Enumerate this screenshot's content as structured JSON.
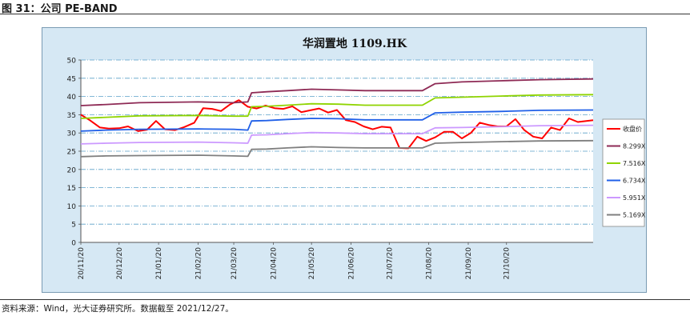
{
  "figure": {
    "caption": "图 31：公司 PE-BAND",
    "source": "资料来源：Wind，光大证券研究所。数据截至 2021/12/27。"
  },
  "chart_data": {
    "type": "line",
    "title": "华润置地 1109.HK",
    "ylim": [
      0,
      50
    ],
    "yticks": [
      0,
      5,
      10,
      15,
      20,
      25,
      30,
      35,
      40,
      45,
      50
    ],
    "xticks": [
      "20/11/20",
      "20/12/20",
      "21/01/20",
      "21/02/20",
      "21/03/20",
      "21/04/20",
      "21/05/20",
      "21/06/20",
      "21/07/20",
      "21/08/20",
      "21/09/20",
      "21/10/20"
    ],
    "x_range": [
      "2020-11-20",
      "2021-12-27"
    ],
    "grid": "horizontal dash-dot",
    "legend_position": "right",
    "series": [
      {
        "name": "收盘价",
        "color": "#ff0000",
        "points": [
          [
            "2020-11-20",
            35.0
          ],
          [
            "2020-11-27",
            33.5
          ],
          [
            "2020-12-05",
            31.5
          ],
          [
            "2020-12-12",
            31.2
          ],
          [
            "2020-12-20",
            31.3
          ],
          [
            "2020-12-27",
            31.8
          ],
          [
            "2021-01-04",
            30.5
          ],
          [
            "2021-01-11",
            30.9
          ],
          [
            "2021-01-18",
            33.3
          ],
          [
            "2021-01-25",
            31.0
          ],
          [
            "2021-02-02",
            30.8
          ],
          [
            "2021-02-09",
            31.6
          ],
          [
            "2021-02-17",
            32.8
          ],
          [
            "2021-02-24",
            36.8
          ],
          [
            "2021-03-03",
            36.6
          ],
          [
            "2021-03-10",
            36.0
          ],
          [
            "2021-03-17",
            37.8
          ],
          [
            "2021-03-24",
            39.0
          ],
          [
            "2021-03-31",
            37.2
          ],
          [
            "2021-04-07",
            36.7
          ],
          [
            "2021-04-14",
            37.5
          ],
          [
            "2021-04-21",
            36.8
          ],
          [
            "2021-04-28",
            36.6
          ],
          [
            "2021-05-05",
            37.3
          ],
          [
            "2021-05-12",
            35.7
          ],
          [
            "2021-05-19",
            36.2
          ],
          [
            "2021-05-26",
            36.7
          ],
          [
            "2021-06-02",
            35.6
          ],
          [
            "2021-06-09",
            36.3
          ],
          [
            "2021-06-16",
            33.5
          ],
          [
            "2021-06-23",
            33.0
          ],
          [
            "2021-06-30",
            31.8
          ],
          [
            "2021-07-07",
            31.0
          ],
          [
            "2021-07-14",
            31.7
          ],
          [
            "2021-07-21",
            31.5
          ],
          [
            "2021-07-28",
            25.9
          ],
          [
            "2021-08-04",
            25.8
          ],
          [
            "2021-08-11",
            29.0
          ],
          [
            "2021-08-18",
            27.8
          ],
          [
            "2021-08-25",
            28.8
          ],
          [
            "2021-09-01",
            30.3
          ],
          [
            "2021-09-08",
            30.3
          ],
          [
            "2021-09-15",
            28.5
          ],
          [
            "2021-09-22",
            30.0
          ],
          [
            "2021-09-29",
            32.8
          ],
          [
            "2021-10-06",
            32.2
          ],
          [
            "2021-10-13",
            31.8
          ],
          [
            "2021-10-20",
            31.8
          ],
          [
            "2021-10-27",
            33.8
          ],
          [
            "2021-11-03",
            30.8
          ],
          [
            "2021-11-10",
            29.0
          ],
          [
            "2021-11-17",
            28.5
          ],
          [
            "2021-11-24",
            31.5
          ],
          [
            "2021-12-01",
            30.8
          ],
          [
            "2021-12-08",
            34.0
          ],
          [
            "2021-12-15",
            33.0
          ],
          [
            "2021-12-27",
            33.5
          ]
        ]
      },
      {
        "name": "8.299X",
        "color": "#8e2a55",
        "points": [
          [
            "2020-11-20",
            37.5
          ],
          [
            "2020-12-10",
            37.8
          ],
          [
            "2021-01-05",
            38.3
          ],
          [
            "2021-02-20",
            38.5
          ],
          [
            "2021-03-20",
            38.3
          ],
          [
            "2021-03-31",
            38.5
          ],
          [
            "2021-04-03",
            41.0
          ],
          [
            "2021-04-15",
            41.3
          ],
          [
            "2021-05-01",
            41.6
          ],
          [
            "2021-05-20",
            42.0
          ],
          [
            "2021-06-10",
            41.8
          ],
          [
            "2021-07-01",
            41.6
          ],
          [
            "2021-08-15",
            41.6
          ],
          [
            "2021-08-25",
            43.5
          ],
          [
            "2021-09-15",
            44.0
          ],
          [
            "2021-10-15",
            44.3
          ],
          [
            "2021-11-15",
            44.6
          ],
          [
            "2021-12-27",
            44.8
          ]
        ]
      },
      {
        "name": "7.516X",
        "color": "#8fd400",
        "points": [
          [
            "2020-11-20",
            34.0
          ],
          [
            "2020-12-10",
            34.3
          ],
          [
            "2021-01-05",
            34.7
          ],
          [
            "2021-02-20",
            34.8
          ],
          [
            "2021-03-20",
            34.6
          ],
          [
            "2021-03-31",
            34.6
          ],
          [
            "2021-04-03",
            37.2
          ],
          [
            "2021-04-15",
            37.3
          ],
          [
            "2021-05-01",
            37.6
          ],
          [
            "2021-05-20",
            38.0
          ],
          [
            "2021-06-10",
            37.9
          ],
          [
            "2021-07-01",
            37.6
          ],
          [
            "2021-08-15",
            37.6
          ],
          [
            "2021-08-25",
            39.6
          ],
          [
            "2021-09-15",
            39.8
          ],
          [
            "2021-10-15",
            40.1
          ],
          [
            "2021-11-15",
            40.4
          ],
          [
            "2021-12-27",
            40.5
          ]
        ]
      },
      {
        "name": "6.734X",
        "color": "#2060e8",
        "points": [
          [
            "2020-11-20",
            30.5
          ],
          [
            "2020-12-10",
            30.8
          ],
          [
            "2021-01-05",
            31.0
          ],
          [
            "2021-02-20",
            31.1
          ],
          [
            "2021-03-20",
            31.0
          ],
          [
            "2021-03-31",
            30.8
          ],
          [
            "2021-04-03",
            33.3
          ],
          [
            "2021-04-15",
            33.4
          ],
          [
            "2021-05-01",
            33.7
          ],
          [
            "2021-05-20",
            34.0
          ],
          [
            "2021-06-10",
            33.9
          ],
          [
            "2021-07-01",
            33.6
          ],
          [
            "2021-08-15",
            33.6
          ],
          [
            "2021-08-25",
            35.5
          ],
          [
            "2021-09-15",
            35.7
          ],
          [
            "2021-10-15",
            35.9
          ],
          [
            "2021-11-15",
            36.2
          ],
          [
            "2021-12-27",
            36.3
          ]
        ]
      },
      {
        "name": "5.951X",
        "color": "#cc99ff",
        "points": [
          [
            "2020-11-20",
            27.0
          ],
          [
            "2020-12-10",
            27.2
          ],
          [
            "2021-01-05",
            27.4
          ],
          [
            "2021-02-20",
            27.5
          ],
          [
            "2021-03-20",
            27.3
          ],
          [
            "2021-03-31",
            27.2
          ],
          [
            "2021-04-03",
            29.4
          ],
          [
            "2021-04-15",
            29.5
          ],
          [
            "2021-05-01",
            29.8
          ],
          [
            "2021-05-20",
            30.1
          ],
          [
            "2021-06-10",
            30.0
          ],
          [
            "2021-07-01",
            29.8
          ],
          [
            "2021-08-15",
            29.8
          ],
          [
            "2021-08-25",
            31.4
          ],
          [
            "2021-09-15",
            31.5
          ],
          [
            "2021-10-15",
            31.7
          ],
          [
            "2021-11-15",
            32.0
          ],
          [
            "2021-12-27",
            32.1
          ]
        ]
      },
      {
        "name": "5.169X",
        "color": "#7f7f7f",
        "points": [
          [
            "2020-11-20",
            23.5
          ],
          [
            "2020-12-10",
            23.7
          ],
          [
            "2021-01-05",
            23.8
          ],
          [
            "2021-02-20",
            23.9
          ],
          [
            "2021-03-20",
            23.7
          ],
          [
            "2021-03-31",
            23.6
          ],
          [
            "2021-04-03",
            25.5
          ],
          [
            "2021-04-15",
            25.6
          ],
          [
            "2021-05-01",
            25.9
          ],
          [
            "2021-05-20",
            26.2
          ],
          [
            "2021-06-10",
            26.0
          ],
          [
            "2021-07-01",
            25.9
          ],
          [
            "2021-08-15",
            25.9
          ],
          [
            "2021-08-25",
            27.2
          ],
          [
            "2021-09-15",
            27.4
          ],
          [
            "2021-10-15",
            27.6
          ],
          [
            "2021-11-15",
            27.8
          ],
          [
            "2021-12-27",
            27.9
          ]
        ]
      }
    ]
  }
}
